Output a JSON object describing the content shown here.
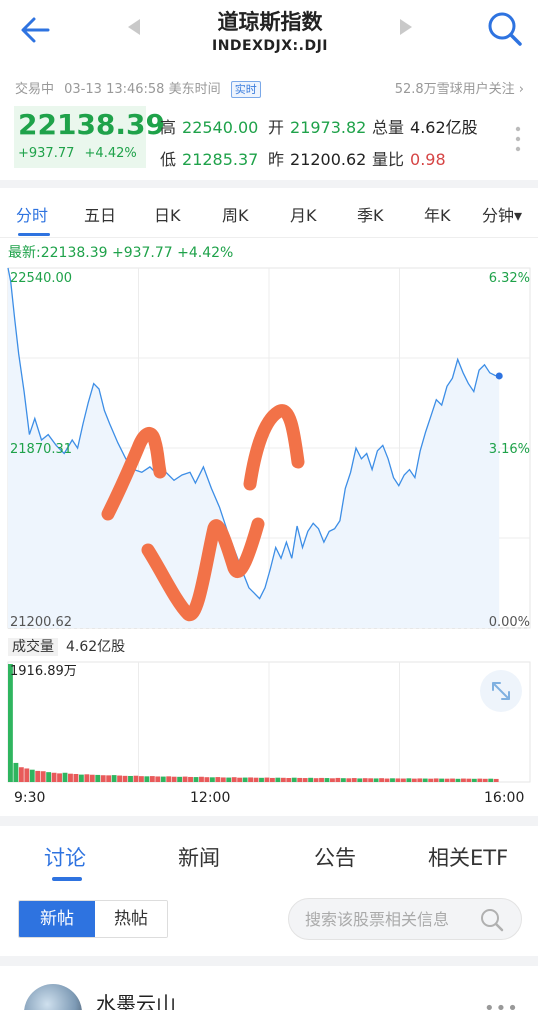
{
  "header": {
    "title": "道琼斯指数",
    "subtitle": "INDEXDJX:.DJI",
    "icons": {
      "back": "arrow-left-icon",
      "prev": "triangle-left-icon",
      "next": "triangle-right-icon",
      "search": "search-icon"
    }
  },
  "quote": {
    "trading_status": "交易中",
    "datetime": "03-13 13:46:58 美东时间",
    "realtime_badge": "实时",
    "followers": "52.8万雪球用户关注",
    "price": "22138.39",
    "change": "+937.77",
    "change_pct": "+4.42%",
    "stats": {
      "high_label": "高",
      "high": "22540.00",
      "open_label": "开",
      "open": "21973.82",
      "volume_label": "总量",
      "volume": "4.62亿股",
      "low_label": "低",
      "low": "21285.37",
      "prev_label": "昨",
      "prev": "21200.62",
      "ratio_label": "量比",
      "ratio": "0.98"
    },
    "colors": {
      "up": "#1fa24a",
      "ratio": "#d64545"
    }
  },
  "period_tabs": [
    "分时",
    "五日",
    "日K",
    "周K",
    "月K",
    "季K",
    "年K",
    "分钟▾"
  ],
  "chart": {
    "latest_line": "最新:22138.39  +937.77  +4.42%",
    "y_left_top": "22540.00",
    "y_left_mid": "21870.31",
    "y_left_bottom": "21200.62",
    "y_right_top": "6.32%",
    "y_right_mid": "3.16%",
    "y_right_bottom": "0.00%",
    "volume_tag": "成交量",
    "volume_value": "4.62亿股",
    "volume_max": "1916.89万",
    "time_start": "9:30",
    "time_mid": "12:00",
    "time_end": "16:00",
    "expand_icon": "expand-arrows-icon",
    "annotation_color": "#f27248"
  },
  "chart_data": {
    "type": "line",
    "title": "",
    "xlabel": "",
    "ylabel": "",
    "x_range_minutes": [
      0,
      390
    ],
    "ylim": [
      21200.62,
      22540.0
    ],
    "series": [
      {
        "values": [
          [
            0,
            22540
          ],
          [
            2,
            22490
          ],
          [
            5,
            22350
          ],
          [
            8,
            22220
          ],
          [
            12,
            22080
          ],
          [
            16,
            21920
          ],
          [
            20,
            21980
          ],
          [
            25,
            21900
          ],
          [
            30,
            21920
          ],
          [
            36,
            21880
          ],
          [
            42,
            21850
          ],
          [
            48,
            21900
          ],
          [
            52,
            21870
          ],
          [
            56,
            21960
          ],
          [
            60,
            22040
          ],
          [
            64,
            22110
          ],
          [
            68,
            22090
          ],
          [
            72,
            22010
          ],
          [
            76,
            21960
          ],
          [
            82,
            21890
          ],
          [
            88,
            21830
          ],
          [
            94,
            21790
          ],
          [
            100,
            21780
          ],
          [
            106,
            21800
          ],
          [
            112,
            21770
          ],
          [
            118,
            21780
          ],
          [
            124,
            21750
          ],
          [
            130,
            21770
          ],
          [
            136,
            21780
          ],
          [
            140,
            21740
          ],
          [
            146,
            21800
          ],
          [
            152,
            21720
          ],
          [
            158,
            21650
          ],
          [
            164,
            21560
          ],
          [
            170,
            21480
          ],
          [
            176,
            21400
          ],
          [
            180,
            21350
          ],
          [
            184,
            21330
          ],
          [
            188,
            21310
          ],
          [
            192,
            21350
          ],
          [
            196,
            21420
          ],
          [
            200,
            21500
          ],
          [
            204,
            21460
          ],
          [
            208,
            21520
          ],
          [
            212,
            21460
          ],
          [
            216,
            21580
          ],
          [
            220,
            21500
          ],
          [
            224,
            21560
          ],
          [
            228,
            21590
          ],
          [
            232,
            21570
          ],
          [
            236,
            21520
          ],
          [
            240,
            21560
          ],
          [
            244,
            21570
          ],
          [
            248,
            21600
          ],
          [
            252,
            21720
          ],
          [
            256,
            21780
          ],
          [
            260,
            21870
          ],
          [
            264,
            21830
          ],
          [
            268,
            21850
          ],
          [
            272,
            21790
          ],
          [
            276,
            21860
          ],
          [
            280,
            21880
          ],
          [
            284,
            21830
          ],
          [
            288,
            21760
          ],
          [
            292,
            21730
          ],
          [
            296,
            21770
          ],
          [
            300,
            21790
          ],
          [
            304,
            21760
          ],
          [
            308,
            21860
          ],
          [
            312,
            21930
          ],
          [
            316,
            21990
          ],
          [
            320,
            22050
          ],
          [
            324,
            22030
          ],
          [
            328,
            22100
          ],
          [
            332,
            22130
          ],
          [
            336,
            22200
          ],
          [
            340,
            22150
          ],
          [
            344,
            22110
          ],
          [
            348,
            22080
          ],
          [
            352,
            22160
          ],
          [
            356,
            22180
          ],
          [
            360,
            22150
          ],
          [
            364,
            22140
          ],
          [
            367,
            22138.39
          ]
        ]
      }
    ],
    "volume": {
      "unit": "万",
      "ymax": 1916.89,
      "values": [
        1916.89,
        310,
        240,
        220,
        200,
        180,
        175,
        160,
        150,
        140,
        150,
        135,
        130,
        120,
        125,
        118,
        115,
        110,
        108,
        112,
        105,
        100,
        98,
        102,
        95,
        92,
        96,
        90,
        88,
        92,
        86,
        84,
        88,
        82,
        80,
        85,
        78,
        76,
        80,
        74,
        72,
        78,
        70,
        72,
        74,
        70,
        68,
        72,
        66,
        70,
        68,
        65,
        70,
        66,
        64,
        68,
        62,
        66,
        64,
        60,
        66,
        62,
        60,
        64,
        58,
        62,
        60,
        58,
        62,
        56,
        60,
        58,
        56,
        60,
        55,
        58,
        56,
        54,
        58,
        55,
        54,
        56,
        52,
        56,
        54,
        52,
        55,
        52,
        54,
        50
      ]
    },
    "colors": {
      "line": "#3d8ee6",
      "area": "#eef5fd",
      "vol_up": "#e85a5a",
      "vol_down": "#2fb55f",
      "first_bar": "#2fb55f"
    }
  },
  "discussion": {
    "tabs": [
      "讨论",
      "新闻",
      "公告",
      "相关ETF"
    ],
    "segments": {
      "new": "新帖",
      "hot": "热帖"
    },
    "search_placeholder": "搜索该股票相关信息",
    "first_post_author": "水墨云山",
    "more_icon": "more-dots-icon"
  }
}
